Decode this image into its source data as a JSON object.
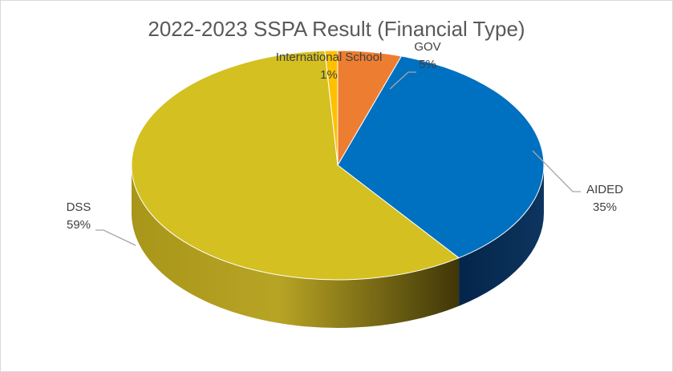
{
  "chart_data": {
    "type": "pie",
    "title": "2022-2023 SSPA Result (Financial Type)",
    "categories": [
      "GOV",
      "AIDED",
      "DSS",
      "International School"
    ],
    "values": [
      5,
      35,
      59,
      1
    ],
    "value_labels": [
      "5%",
      "35%",
      "59%",
      "1%"
    ],
    "colors": [
      "#ED7D31",
      "#0070C0",
      "#D4C020",
      "#FFC000"
    ],
    "legend": "none",
    "style": "3d"
  }
}
